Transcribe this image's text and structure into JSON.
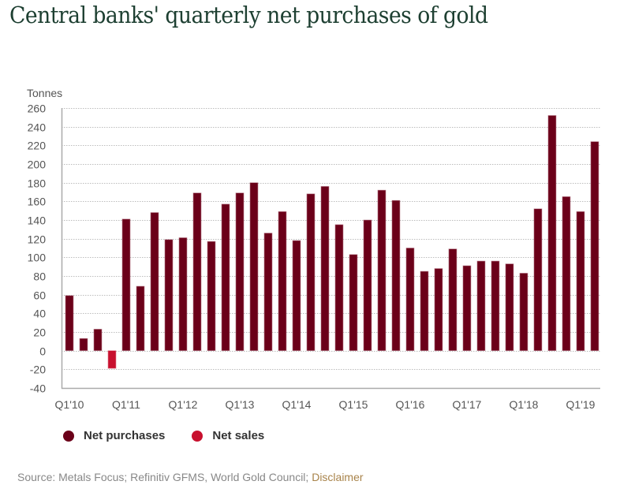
{
  "header": {
    "title": "Central banks' quarterly net purchases of gold"
  },
  "legend": {
    "items": [
      {
        "label": "Net purchases",
        "color": "#6b0019"
      },
      {
        "label": "Net sales",
        "color": "#c8102e"
      }
    ]
  },
  "footer": {
    "source_text": "Source: Metals Focus; Refinitiv GFMS, World Gold Council; ",
    "disclaimer_link": "Disclaimer"
  },
  "chart_data": {
    "type": "bar",
    "title": "Central banks' quarterly net purchases of gold",
    "xlabel": "",
    "ylabel": "Tonnes",
    "ylim": [
      -40,
      260
    ],
    "yticks": [
      260,
      240,
      220,
      200,
      180,
      160,
      140,
      120,
      100,
      80,
      60,
      40,
      20,
      0,
      -20,
      -40
    ],
    "grid": true,
    "legend_position": "bottom-left",
    "xtick_labels": [
      "Q1'10",
      "Q1'11",
      "Q1'12",
      "Q1'13",
      "Q1'14",
      "Q1'15",
      "Q1'16",
      "Q1'17",
      "Q1'18",
      "Q1'19"
    ],
    "categories": [
      "Q1'10",
      "Q2'10",
      "Q3'10",
      "Q4'10",
      "Q1'11",
      "Q2'11",
      "Q3'11",
      "Q4'11",
      "Q1'12",
      "Q2'12",
      "Q3'12",
      "Q4'12",
      "Q1'13",
      "Q2'13",
      "Q3'13",
      "Q4'13",
      "Q1'14",
      "Q2'14",
      "Q3'14",
      "Q4'14",
      "Q1'15",
      "Q2'15",
      "Q3'15",
      "Q4'15",
      "Q1'16",
      "Q2'16",
      "Q3'16",
      "Q4'16",
      "Q1'17",
      "Q2'17",
      "Q3'17",
      "Q4'17",
      "Q1'18",
      "Q2'18",
      "Q3'18",
      "Q4'18",
      "Q1'19",
      "Q2'19"
    ],
    "values": [
      59,
      13,
      23,
      -19,
      141,
      69,
      148,
      119,
      121,
      169,
      117,
      157,
      169,
      180,
      126,
      149,
      118,
      168,
      176,
      135,
      103,
      140,
      172,
      161,
      110,
      85,
      88,
      109,
      91,
      96,
      96,
      93,
      83,
      152,
      252,
      165,
      149,
      224
    ],
    "series": [
      {
        "name": "Net purchases",
        "color": "#6b0019",
        "rule": "value >= 0"
      },
      {
        "name": "Net sales",
        "color": "#c8102e",
        "rule": "value < 0"
      }
    ]
  }
}
